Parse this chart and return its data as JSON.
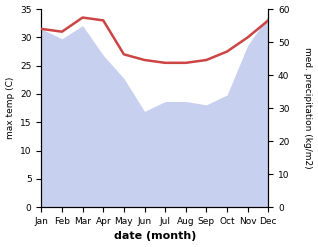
{
  "months": [
    "Jan",
    "Feb",
    "Mar",
    "Apr",
    "May",
    "Jun",
    "Jul",
    "Aug",
    "Sep",
    "Oct",
    "Nov",
    "Dec"
  ],
  "temperature": [
    31.5,
    31.0,
    33.5,
    33.0,
    27.0,
    26.0,
    25.5,
    25.5,
    26.0,
    27.5,
    30.0,
    33.0
  ],
  "precipitation": [
    54.0,
    51.0,
    55.0,
    46.0,
    39.0,
    29.0,
    32.0,
    32.0,
    31.0,
    34.0,
    49.0,
    58.0
  ],
  "temp_color": "#cc4444",
  "precip_fill_color": "#c8d0f0",
  "bg_color": "#ffffff",
  "temp_ylim": [
    0,
    35
  ],
  "precip_ylim": [
    0,
    60
  ],
  "temp_yticks": [
    0,
    5,
    10,
    15,
    20,
    25,
    30,
    35
  ],
  "precip_yticks": [
    0,
    10,
    20,
    30,
    40,
    50,
    60
  ],
  "ylabel_left": "max temp (C)",
  "ylabel_right": "med. precipitation (kg/m2)",
  "xlabel": "date (month)"
}
